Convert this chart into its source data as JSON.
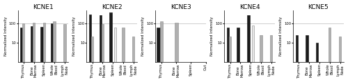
{
  "panels": [
    {
      "title": "KCNE1",
      "cats": [
        "Thymus",
        "Bone\nMarrow",
        "Spleen",
        "Whole\nBlood",
        "Lymph\nNode"
      ],
      "black": [
        60,
        70,
        65,
        100,
        null
      ],
      "grey": [
        100,
        105,
        105,
        130,
        90
      ],
      "white": [
        null,
        null,
        null,
        null,
        null
      ]
    },
    {
      "title": "KCNE2",
      "cats": [
        "Thymus",
        "Bone\nMarrow",
        "Spleen",
        "Whole\nBlood",
        "Lymph\nNode"
      ],
      "black": [
        300,
        280,
        380,
        null,
        null
      ],
      "grey": [
        20,
        90,
        null,
        60,
        20
      ],
      "white": [
        null,
        null,
        60,
        null,
        null
      ]
    },
    {
      "title": "KCNE3",
      "cats": [
        "Thymus",
        "Bone\nMarrow",
        "Spleen",
        "Gut"
      ],
      "black": [
        60,
        null,
        null,
        null
      ],
      "grey": [
        130,
        110,
        null,
        null
      ],
      "white": [
        null,
        null,
        null,
        null
      ],
      "extra_cats": true
    },
    {
      "title": "KCNE4",
      "cats": [
        "Thymus",
        "Bone\nMarrow",
        "Spleen",
        "Whole\nBlood",
        "Lymph\nNode"
      ],
      "black": [
        60,
        60,
        280,
        null,
        null
      ],
      "grey": [
        20,
        null,
        null,
        25,
        25
      ],
      "white": [
        null,
        null,
        80,
        null,
        null
      ]
    },
    {
      "title": "KCNE5",
      "cats": [
        "Thymus",
        "Bone\nMarrow",
        "Spleen",
        "Whole\nBlood",
        "Lymph\nNode"
      ],
      "black": [
        25,
        25,
        10,
        null,
        null
      ],
      "grey": [
        null,
        null,
        null,
        60,
        20
      ],
      "white": [
        null,
        null,
        null,
        null,
        null
      ]
    }
  ],
  "color_black": "#1a1a1a",
  "color_grey": "#b0b0b0",
  "color_white": "#e8e8e8",
  "color_white_edge": "#888888",
  "ymin": 1,
  "ymax": 500,
  "yticks": [
    10,
    100
  ],
  "hline": 100,
  "bar_width": 0.22,
  "title_fontsize": 6.5,
  "tick_fontsize": 3.8,
  "ylabel": "Normalized Intensity",
  "ylabel_fontsize": 4.0
}
